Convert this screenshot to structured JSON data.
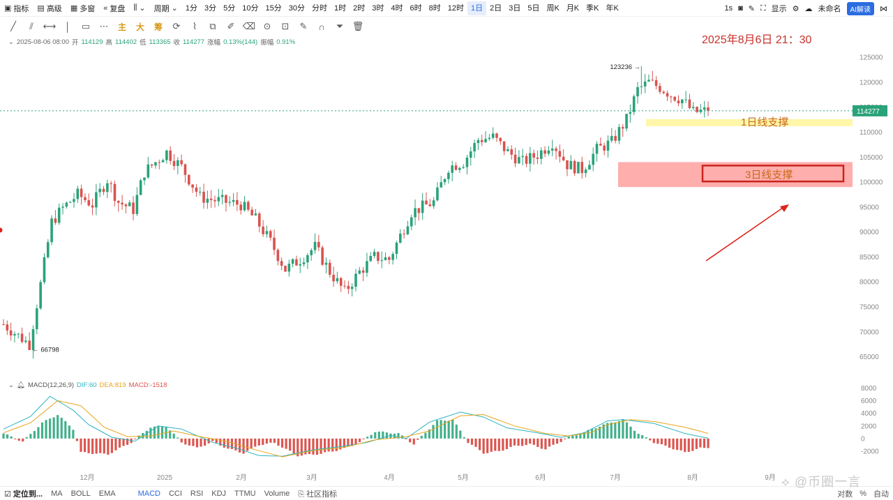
{
  "toolbar": {
    "indicators": "指标",
    "advanced": "高级",
    "multi_window": "多窗",
    "replay": "复盘",
    "period": "周期",
    "timeframes": [
      "1分",
      "3分",
      "5分",
      "10分",
      "15分",
      "30分",
      "分时",
      "1时",
      "2时",
      "3时",
      "4时",
      "6时",
      "8时",
      "12时",
      "1日",
      "2日",
      "3日",
      "5日",
      "周K",
      "月K",
      "季K",
      "年K"
    ],
    "active_timeframe": "1日",
    "interval": "1s",
    "display": "显示",
    "unnamed": "未命名",
    "ai_button": "AI解读"
  },
  "drawing_tools": {
    "main": "主",
    "big": "大",
    "chip": "筹"
  },
  "ohlc": {
    "date": "2025-08-06 08:00",
    "open_label": "开",
    "open": "114129",
    "high_label": "高",
    "high": "114402",
    "low_label": "低",
    "low": "113365",
    "close_label": "收",
    "close": "114277",
    "change_label": "涨幅",
    "change": "0.13%(144)",
    "amplitude_label": "振幅",
    "amplitude": "0.91%"
  },
  "annotation": {
    "datetime": "2025年8月6日 21：30",
    "support_1d": "1日线支撑",
    "support_3d": "3日线支撑",
    "high_marker": "123236",
    "low_marker": "66798",
    "last_price": "114277",
    "colors": {
      "support_1d_fill": "#fff59a",
      "support_3d_fill": "#ff9a9a",
      "arrow": "#d9261c",
      "text": "#c8302a"
    }
  },
  "macd": {
    "name": "MACD(12,26,9)",
    "dif": "DIF:60",
    "dea": "DEA:819",
    "macd": "MACD:-1518"
  },
  "chart_data": [
    {
      "type": "candlestick",
      "title": "",
      "ylim": [
        62000,
        126000
      ],
      "y_ticks": [
        "125000",
        "120000",
        "115000",
        "110000",
        "105000",
        "100000",
        "95000",
        "90000",
        "85000",
        "80000",
        "75000",
        "70000",
        "65000"
      ],
      "x_ticks": [
        "12月",
        "2025",
        "2月",
        "3月",
        "4月",
        "5月",
        "6月",
        "7月",
        "8月",
        "9月"
      ],
      "path_close": [
        [
          0,
          71500
        ],
        [
          7,
          67500
        ],
        [
          10,
          79500
        ],
        [
          13,
          92000
        ],
        [
          16,
          94800
        ],
        [
          20,
          97500
        ],
        [
          24,
          95500
        ],
        [
          28,
          100500
        ],
        [
          31,
          96000
        ],
        [
          35,
          94500
        ],
        [
          38,
          102000
        ],
        [
          44,
          106000
        ],
        [
          48,
          103000
        ],
        [
          53,
          97000
        ],
        [
          56,
          96500
        ],
        [
          60,
          96000
        ],
        [
          64,
          95500
        ],
        [
          68,
          92500
        ],
        [
          72,
          88000
        ],
        [
          76,
          82500
        ],
        [
          80,
          84500
        ],
        [
          84,
          87000
        ],
        [
          88,
          82000
        ],
        [
          92,
          78000
        ],
        [
          96,
          82000
        ],
        [
          100,
          85000
        ],
        [
          104,
          84500
        ],
        [
          110,
          94000
        ],
        [
          116,
          96000
        ],
        [
          120,
          103000
        ],
        [
          124,
          104000
        ],
        [
          128,
          108500
        ],
        [
          132,
          109000
        ],
        [
          136,
          106000
        ],
        [
          140,
          104000
        ],
        [
          144,
          105500
        ],
        [
          148,
          108000
        ],
        [
          152,
          103500
        ],
        [
          156,
          102500
        ],
        [
          160,
          106500
        ],
        [
          164,
          108000
        ],
        [
          168,
          112500
        ],
        [
          171,
          118500
        ],
        [
          174,
          120000
        ],
        [
          177,
          119000
        ],
        [
          180,
          117500
        ],
        [
          183,
          116500
        ],
        [
          186,
          114000
        ],
        [
          190,
          114277
        ]
      ],
      "high": 123236,
      "low": 66798,
      "last": 114277,
      "support_zones": [
        {
          "label": "1日线支撑",
          "from": 111200,
          "to": 112600
        },
        {
          "label": "3日线支撑",
          "from": 99000,
          "to": 104000
        }
      ]
    },
    {
      "type": "bar",
      "title": "MACD(12,26,9)",
      "ylim": [
        -3000,
        8500
      ],
      "y_ticks": [
        "8000",
        "6000",
        "4000",
        "2000",
        "0",
        "-2000"
      ],
      "hist_path": [
        [
          0,
          800
        ],
        [
          5,
          -500
        ],
        [
          10,
          2500
        ],
        [
          14,
          3800
        ],
        [
          18,
          1500
        ],
        [
          20,
          -2200
        ],
        [
          27,
          -2500
        ],
        [
          33,
          -600
        ],
        [
          38,
          1800
        ],
        [
          42,
          2000
        ],
        [
          46,
          -600
        ],
        [
          50,
          -1500
        ],
        [
          54,
          -500
        ],
        [
          58,
          -1600
        ],
        [
          62,
          -2300
        ],
        [
          66,
          -1000
        ],
        [
          70,
          -700
        ],
        [
          76,
          -2700
        ],
        [
          82,
          -2400
        ],
        [
          88,
          -1600
        ],
        [
          92,
          -600
        ],
        [
          96,
          1100
        ],
        [
          102,
          800
        ],
        [
          106,
          -900
        ],
        [
          112,
          2800
        ],
        [
          116,
          3000
        ],
        [
          120,
          -600
        ],
        [
          124,
          -2300
        ],
        [
          128,
          -2000
        ],
        [
          132,
          -1200
        ],
        [
          136,
          -900
        ],
        [
          140,
          -1700
        ],
        [
          146,
          200
        ],
        [
          150,
          1000
        ],
        [
          155,
          2200
        ],
        [
          160,
          3000
        ],
        [
          164,
          800
        ],
        [
          168,
          -600
        ],
        [
          172,
          -1400
        ],
        [
          176,
          -2200
        ],
        [
          180,
          -1518
        ]
      ],
      "dif_path": [
        [
          0,
          1500
        ],
        [
          7,
          3500
        ],
        [
          12,
          6700
        ],
        [
          18,
          4500
        ],
        [
          22,
          2200
        ],
        [
          28,
          200
        ],
        [
          34,
          -400
        ],
        [
          40,
          2000
        ],
        [
          46,
          1500
        ],
        [
          54,
          -600
        ],
        [
          60,
          -1500
        ],
        [
          66,
          -2700
        ],
        [
          72,
          -2800
        ],
        [
          80,
          -1800
        ],
        [
          88,
          -1200
        ],
        [
          94,
          -600
        ],
        [
          100,
          500
        ],
        [
          104,
          0
        ],
        [
          110,
          2600
        ],
        [
          118,
          4200
        ],
        [
          124,
          3400
        ],
        [
          130,
          1700
        ],
        [
          138,
          900
        ],
        [
          144,
          200
        ],
        [
          150,
          900
        ],
        [
          156,
          2800
        ],
        [
          160,
          3000
        ],
        [
          168,
          2400
        ],
        [
          176,
          800
        ],
        [
          182,
          60
        ]
      ],
      "dea_path": [
        [
          0,
          900
        ],
        [
          7,
          2500
        ],
        [
          14,
          6000
        ],
        [
          20,
          5200
        ],
        [
          26,
          1800
        ],
        [
          32,
          300
        ],
        [
          38,
          400
        ],
        [
          44,
          1200
        ],
        [
          50,
          400
        ],
        [
          58,
          -500
        ],
        [
          64,
          -1600
        ],
        [
          72,
          -2900
        ],
        [
          80,
          -1900
        ],
        [
          88,
          -1400
        ],
        [
          96,
          -200
        ],
        [
          104,
          300
        ],
        [
          110,
          1200
        ],
        [
          118,
          3600
        ],
        [
          124,
          3800
        ],
        [
          132,
          2000
        ],
        [
          140,
          800
        ],
        [
          146,
          400
        ],
        [
          152,
          1000
        ],
        [
          156,
          2200
        ],
        [
          162,
          3000
        ],
        [
          168,
          2700
        ],
        [
          176,
          1800
        ],
        [
          182,
          819
        ]
      ]
    }
  ]
}
